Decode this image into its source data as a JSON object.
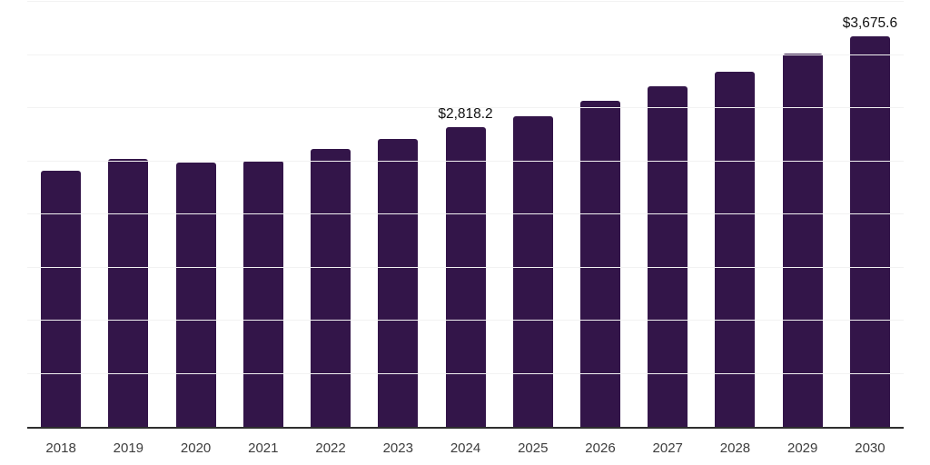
{
  "chart_data": {
    "type": "bar",
    "title": "",
    "xlabel": "",
    "ylabel": "",
    "ylim": [
      0,
      4000
    ],
    "gridline_step": 500,
    "grid": "horizontal-only",
    "legend": "none",
    "y_axis_tick_labels_visible": false,
    "unit_prefix": "$",
    "categories": [
      "2018",
      "2019",
      "2020",
      "2021",
      "2022",
      "2023",
      "2024",
      "2025",
      "2026",
      "2027",
      "2028",
      "2029",
      "2030"
    ],
    "values": [
      2410.0,
      2519.0,
      2485.0,
      2502.0,
      2618.0,
      2713.0,
      2818.2,
      2924.0,
      3069.0,
      3203.0,
      3346.0,
      3512.0,
      3675.6
    ],
    "points": [
      {
        "year": "2018",
        "value": 2410.0,
        "label": null
      },
      {
        "year": "2019",
        "value": 2519.0,
        "label": null
      },
      {
        "year": "2020",
        "value": 2485.0,
        "label": null
      },
      {
        "year": "2021",
        "value": 2502.0,
        "label": null
      },
      {
        "year": "2022",
        "value": 2618.0,
        "label": null
      },
      {
        "year": "2023",
        "value": 2713.0,
        "label": null
      },
      {
        "year": "2024",
        "value": 2818.2,
        "label": "$2,818.2"
      },
      {
        "year": "2025",
        "value": 2924.0,
        "label": null
      },
      {
        "year": "2026",
        "value": 3069.0,
        "label": null
      },
      {
        "year": "2027",
        "value": 3203.0,
        "label": null
      },
      {
        "year": "2028",
        "value": 3346.0,
        "label": null
      },
      {
        "year": "2029",
        "value": 3512.0,
        "label": null
      },
      {
        "year": "2030",
        "value": 3675.6,
        "label": "$3,675.6"
      }
    ],
    "colors": {
      "bar_fill": "#331549",
      "gridline": "#f2f2f2",
      "axis_line": "#2e2e2e",
      "value_label_text": "#111111",
      "tick_label_text": "#3d3d3d",
      "background": "#ffffff"
    }
  }
}
